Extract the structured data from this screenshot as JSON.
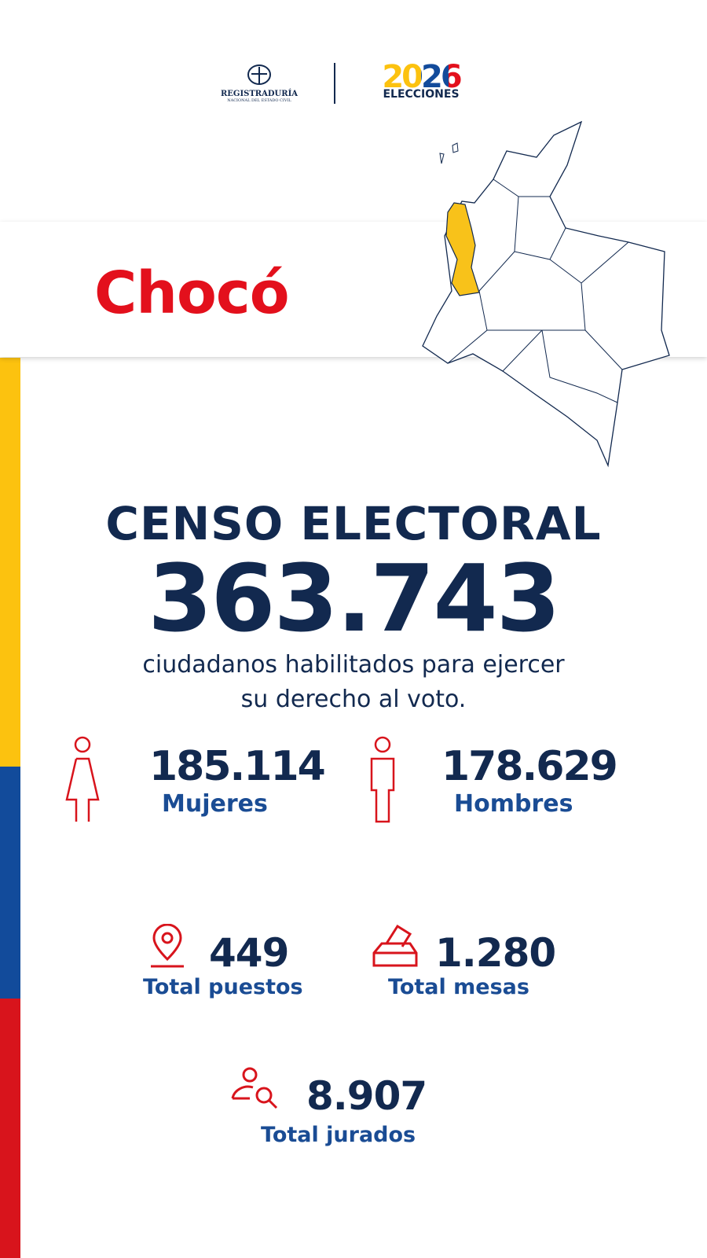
{
  "header": {
    "registraduria": "REGISTRADURÍA",
    "registraduria_sub": "NACIONAL DEL ESTADO CIVIL",
    "year": "2026",
    "elecciones": "ELECCIONES"
  },
  "department": "Chocó",
  "census": {
    "title": "CENSO ELECTORAL",
    "total": "363.743",
    "description_line1": "ciudadanos habilitados para ejercer",
    "description_line2": "su derecho al voto."
  },
  "stats": [
    {
      "value": "185.114",
      "label": "Mujeres"
    },
    {
      "value": "178.629",
      "label": "Hombres"
    },
    {
      "value": "449",
      "label": "Total puestos"
    },
    {
      "value": "1.280",
      "label": "Total mesas"
    },
    {
      "value": "8.907",
      "label": "Total jurados"
    }
  ]
}
